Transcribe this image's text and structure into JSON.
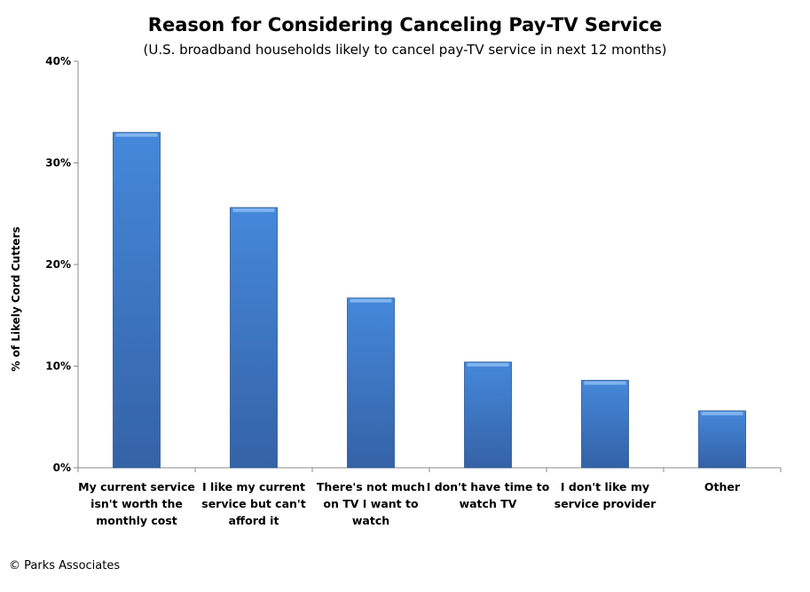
{
  "chart_data": {
    "type": "bar",
    "title": "Reason for Considering Canceling Pay-TV Service",
    "subtitle": "(U.S. broadband households likely to cancel pay-TV service in next 12 months)",
    "xlabel": "",
    "ylabel": "% of Likely Cord Cutters",
    "ylim": [
      0,
      40
    ],
    "yticks": [
      "0%",
      "10%",
      "20%",
      "30%",
      "40%"
    ],
    "categories": [
      [
        "My current service",
        "isn't worth the",
        "monthly cost"
      ],
      [
        "I like my current",
        "service but can't",
        "afford it"
      ],
      [
        "There's not much",
        "on TV I want to",
        "watch"
      ],
      [
        "I don't have time to",
        "watch TV"
      ],
      [
        "I don't like my",
        "service provider"
      ],
      [
        "Other"
      ]
    ],
    "values": [
      33,
      25.6,
      16.7,
      10.4,
      8.6,
      5.6
    ],
    "grid": false,
    "bar_color": "#3f7fcf"
  },
  "footer": "© Parks Associates"
}
